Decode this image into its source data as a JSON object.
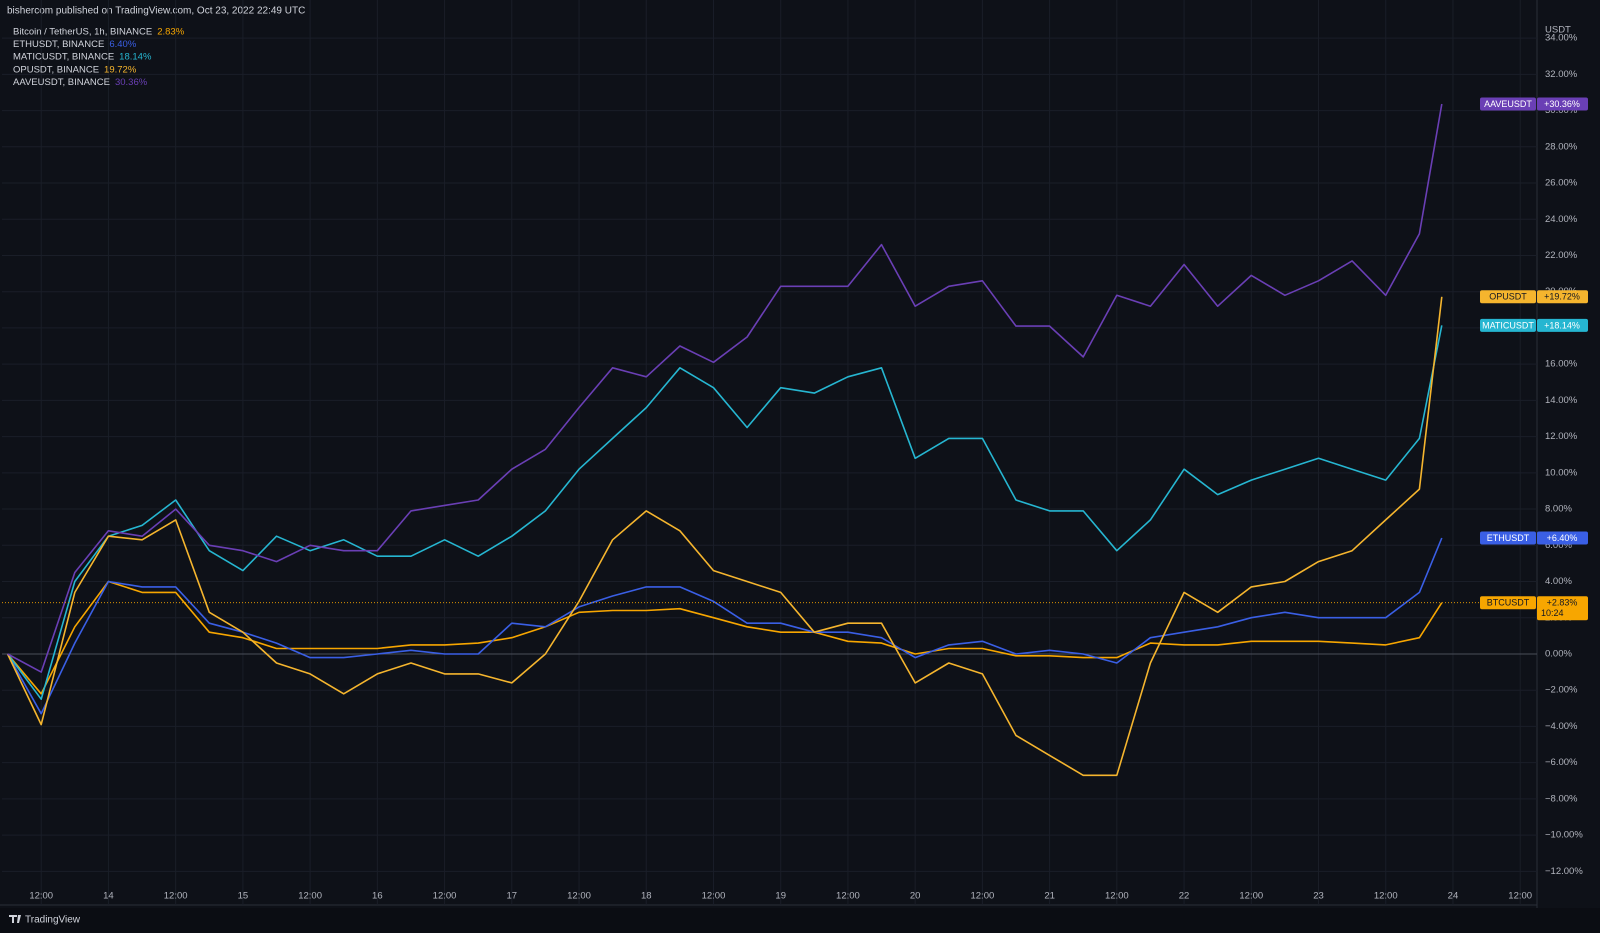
{
  "header": "bishercom published on TradingView.com, Oct 23, 2022 22:49 UTC",
  "footer": "TradingView",
  "chart_data": {
    "type": "line",
    "unit": "USDT",
    "x": [
      "13 06:00",
      "13 12:00",
      "13 18:00",
      "14 00:00",
      "14 06:00",
      "14 12:00",
      "14 18:00",
      "15 00:00",
      "15 06:00",
      "15 12:00",
      "15 18:00",
      "16 00:00",
      "16 06:00",
      "16 12:00",
      "16 18:00",
      "17 00:00",
      "17 06:00",
      "17 12:00",
      "17 18:00",
      "18 00:00",
      "18 06:00",
      "18 12:00",
      "18 18:00",
      "19 00:00",
      "19 06:00",
      "19 12:00",
      "19 18:00",
      "20 00:00",
      "20 06:00",
      "20 12:00",
      "20 18:00",
      "21 00:00",
      "21 06:00",
      "21 12:00",
      "21 18:00",
      "22 00:00",
      "22 06:00",
      "22 12:00",
      "22 18:00",
      "23 00:00",
      "23 06:00",
      "23 12:00",
      "23 18:00",
      "23 22:00"
    ],
    "xlim": [
      "13 05:00",
      "24 15:00"
    ],
    "xticks": [
      {
        "value": "13 12:00",
        "label": "12:00"
      },
      {
        "value": "14 00:00",
        "label": "14"
      },
      {
        "value": "14 12:00",
        "label": "12:00"
      },
      {
        "value": "15 00:00",
        "label": "15"
      },
      {
        "value": "15 12:00",
        "label": "12:00"
      },
      {
        "value": "16 00:00",
        "label": "16"
      },
      {
        "value": "16 12:00",
        "label": "12:00"
      },
      {
        "value": "17 00:00",
        "label": "17"
      },
      {
        "value": "17 12:00",
        "label": "12:00"
      },
      {
        "value": "18 00:00",
        "label": "18"
      },
      {
        "value": "18 12:00",
        "label": "12:00"
      },
      {
        "value": "19 00:00",
        "label": "19"
      },
      {
        "value": "19 12:00",
        "label": "12:00"
      },
      {
        "value": "20 00:00",
        "label": "20"
      },
      {
        "value": "20 12:00",
        "label": "12:00"
      },
      {
        "value": "21 00:00",
        "label": "21"
      },
      {
        "value": "21 12:00",
        "label": "12:00"
      },
      {
        "value": "22 00:00",
        "label": "22"
      },
      {
        "value": "22 12:00",
        "label": "12:00"
      },
      {
        "value": "23 00:00",
        "label": "23"
      },
      {
        "value": "23 12:00",
        "label": "12:00"
      },
      {
        "value": "24 00:00",
        "label": "24"
      },
      {
        "value": "24 12:00",
        "label": "12:00"
      }
    ],
    "ylim": [
      -12.7,
      35
    ],
    "yticks": [
      {
        "value": -12,
        "label": "−12.00%"
      },
      {
        "value": -10,
        "label": "−10.00%"
      },
      {
        "value": -8,
        "label": "−8.00%"
      },
      {
        "value": -6,
        "label": "−6.00%"
      },
      {
        "value": -4,
        "label": "−4.00%"
      },
      {
        "value": -2,
        "label": "−2.00%"
      },
      {
        "value": 0,
        "label": "0.00%"
      },
      {
        "value": 2,
        "label": "2.00%"
      },
      {
        "value": 4,
        "label": "4.00%"
      },
      {
        "value": 6,
        "label": "6.00%"
      },
      {
        "value": 8,
        "label": "8.00%"
      },
      {
        "value": 10,
        "label": "10.00%"
      },
      {
        "value": 12,
        "label": "12.00%"
      },
      {
        "value": 14,
        "label": "14.00%"
      },
      {
        "value": 16,
        "label": "16.00%"
      },
      {
        "value": 18,
        "label": "18.00%"
      },
      {
        "value": 20,
        "label": "20.00%"
      },
      {
        "value": 22,
        "label": "22.00%"
      },
      {
        "value": 24,
        "label": "24.00%"
      },
      {
        "value": 26,
        "label": "26.00%"
      },
      {
        "value": 28,
        "label": "28.00%"
      },
      {
        "value": 30,
        "label": "30.00%"
      },
      {
        "value": 32,
        "label": "32.00%"
      },
      {
        "value": 34,
        "label": "34.00%"
      }
    ],
    "grid": true,
    "series": [
      {
        "name": "BTCUSDT",
        "legend": "Bitcoin / TetherUS, 1h, BINANCE",
        "legend_value": "2.83%",
        "tag": "+2.83%",
        "countdown": "10:24",
        "color": "#f7a600",
        "values": [
          0,
          -2.2,
          1.5,
          4,
          3.4,
          3.4,
          1.2,
          0.9,
          0.3,
          0.3,
          0.3,
          0.3,
          0.5,
          0.5,
          0.6,
          0.9,
          1.5,
          2.3,
          2.4,
          2.4,
          2.5,
          2,
          1.5,
          1.2,
          1.2,
          0.7,
          0.6,
          0,
          0.3,
          0.3,
          -0.1,
          -0.1,
          -0.2,
          -0.2,
          0.6,
          0.5,
          0.5,
          0.7,
          0.7,
          0.7,
          0.6,
          0.5,
          0.9,
          2.83
        ]
      },
      {
        "name": "ETHUSDT",
        "legend": "ETHUSDT, BINANCE",
        "legend_value": "6.40%",
        "tag": "+6.40%",
        "color": "#3a5fe5",
        "values": [
          0,
          -3.3,
          0.6,
          4,
          3.7,
          3.7,
          1.7,
          1.2,
          0.6,
          -0.2,
          -0.2,
          0,
          0.2,
          0,
          0,
          1.7,
          1.5,
          2.6,
          3.2,
          3.7,
          3.7,
          2.9,
          1.7,
          1.7,
          1.2,
          1.2,
          0.9,
          -0.2,
          0.5,
          0.7,
          0,
          0.2,
          0,
          -0.5,
          0.9,
          1.2,
          1.5,
          2,
          2.3,
          2,
          2,
          2,
          3.4,
          6.4
        ]
      },
      {
        "name": "MATICUSDT",
        "legend": "MATICUSDT, BINANCE",
        "legend_value": "18.14%",
        "tag": "+18.14%",
        "color": "#26b6d1",
        "values": [
          0,
          -2.5,
          4,
          6.5,
          7.1,
          8.5,
          5.7,
          4.6,
          6.5,
          5.7,
          6.3,
          5.4,
          5.4,
          6.3,
          5.4,
          6.5,
          7.9,
          10.2,
          11.9,
          13.6,
          15.8,
          14.7,
          12.5,
          14.7,
          14.4,
          15.3,
          15.8,
          10.8,
          11.9,
          11.9,
          8.5,
          7.9,
          7.9,
          5.7,
          7.4,
          10.2,
          8.8,
          9.6,
          10.2,
          10.8,
          10.2,
          9.6,
          11.9,
          18.14
        ]
      },
      {
        "name": "OPUSDT",
        "legend": "OPUSDT, BINANCE",
        "legend_value": "19.72%",
        "tag": "+19.72%",
        "color": "#f5b52e",
        "values": [
          0,
          -3.9,
          3.4,
          6.5,
          6.3,
          7.4,
          2.3,
          1.2,
          -0.5,
          -1.1,
          -2.2,
          -1.1,
          -0.5,
          -1.1,
          -1.1,
          -1.6,
          0,
          2.9,
          6.3,
          7.9,
          6.8,
          4.6,
          4,
          3.4,
          1.2,
          1.7,
          1.7,
          -1.6,
          -0.5,
          -1.1,
          -4.5,
          -5.6,
          -6.7,
          -6.7,
          -0.5,
          3.4,
          2.3,
          3.7,
          4,
          5.1,
          5.7,
          7.4,
          9.1,
          19.72
        ]
      },
      {
        "name": "AAVEUSDT",
        "legend": "AAVEUSDT, BINANCE",
        "legend_value": "30.36%",
        "tag": "+30.36%",
        "color": "#6a3fb5",
        "values": [
          0,
          -1,
          4.5,
          6.8,
          6.5,
          8,
          6,
          5.7,
          5.1,
          6,
          5.7,
          5.7,
          7.9,
          8.2,
          8.5,
          10.2,
          11.3,
          13.6,
          15.8,
          15.3,
          17,
          16.1,
          17.5,
          20.3,
          20.3,
          20.3,
          22.6,
          19.2,
          20.3,
          20.6,
          18.1,
          18.1,
          16.4,
          19.8,
          19.2,
          21.5,
          19.2,
          20.9,
          19.8,
          20.6,
          21.7,
          19.8,
          23.2,
          30.36
        ]
      }
    ]
  }
}
